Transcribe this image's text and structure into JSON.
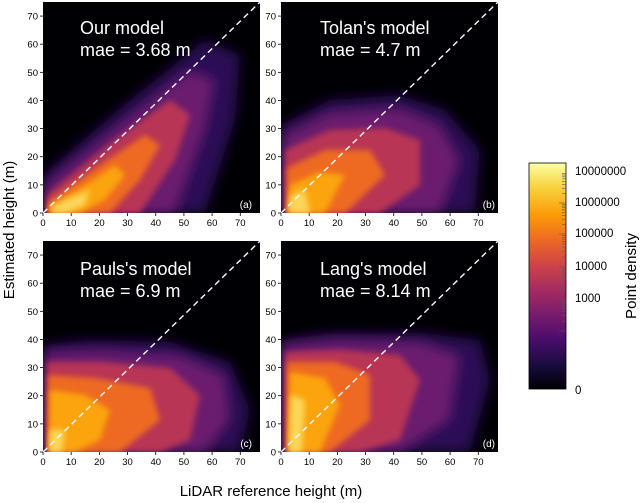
{
  "figure": {
    "xlabel": "LiDAR reference height (m)",
    "ylabel": "Estimated height (m)"
  },
  "chart_data": [
    {
      "type": "heatmap",
      "title": "Our model",
      "subtitle": "mae = 3.68 m",
      "panel_label": "(a)",
      "xlim": [
        0,
        77
      ],
      "ylim": [
        0,
        75
      ],
      "xticks": [
        0,
        10,
        20,
        30,
        40,
        50,
        60,
        70
      ],
      "yticks": [
        0,
        10,
        20,
        30,
        40,
        50,
        60,
        70
      ],
      "reference_line": "1:1 dashed white",
      "density_pattern": "concentrated along the 1:1 line up to about 60 m"
    },
    {
      "type": "heatmap",
      "title": "Tolan's model",
      "subtitle": "mae = 4.7 m",
      "panel_label": "(b)",
      "xlim": [
        0,
        77
      ],
      "ylim": [
        0,
        75
      ],
      "xticks": [
        0,
        10,
        20,
        30,
        40,
        50,
        60,
        70
      ],
      "yticks": [
        0,
        10,
        20,
        30,
        40,
        50,
        60,
        70
      ],
      "reference_line": "1:1 dashed white",
      "density_pattern": "estimates saturate near 35 m"
    },
    {
      "type": "heatmap",
      "title": "Pauls's model",
      "subtitle": "mae = 6.9 m",
      "panel_label": "(c)",
      "xlim": [
        0,
        77
      ],
      "ylim": [
        0,
        75
      ],
      "xticks": [
        0,
        10,
        20,
        30,
        40,
        50,
        60,
        70
      ],
      "yticks": [
        0,
        10,
        20,
        30,
        40,
        50,
        60,
        70
      ],
      "reference_line": "1:1 dashed white",
      "density_pattern": "broad band between 10 and 35 m, saturating near 35 m"
    },
    {
      "type": "heatmap",
      "title": "Lang's model",
      "subtitle": "mae = 8.14 m",
      "panel_label": "(d)",
      "xlim": [
        0,
        77
      ],
      "ylim": [
        0,
        75
      ],
      "xticks": [
        0,
        10,
        20,
        30,
        40,
        50,
        60,
        70
      ],
      "yticks": [
        0,
        10,
        20,
        30,
        40,
        50,
        60,
        70
      ],
      "reference_line": "1:1 dashed white",
      "density_pattern": "overestimation for low heights, saturating near 40 m"
    }
  ],
  "colorbar": {
    "title": "Point density",
    "scale": "log",
    "tick_labels": [
      "10000000",
      "1000000",
      "100000",
      "10000",
      "1000",
      "0"
    ],
    "colors": [
      "#000004",
      "#1b0c41",
      "#4a0c6b",
      "#781c6d",
      "#a52c60",
      "#cf4446",
      "#ed6925",
      "#fb9b06",
      "#f7d13d",
      "#fcffa4"
    ]
  }
}
